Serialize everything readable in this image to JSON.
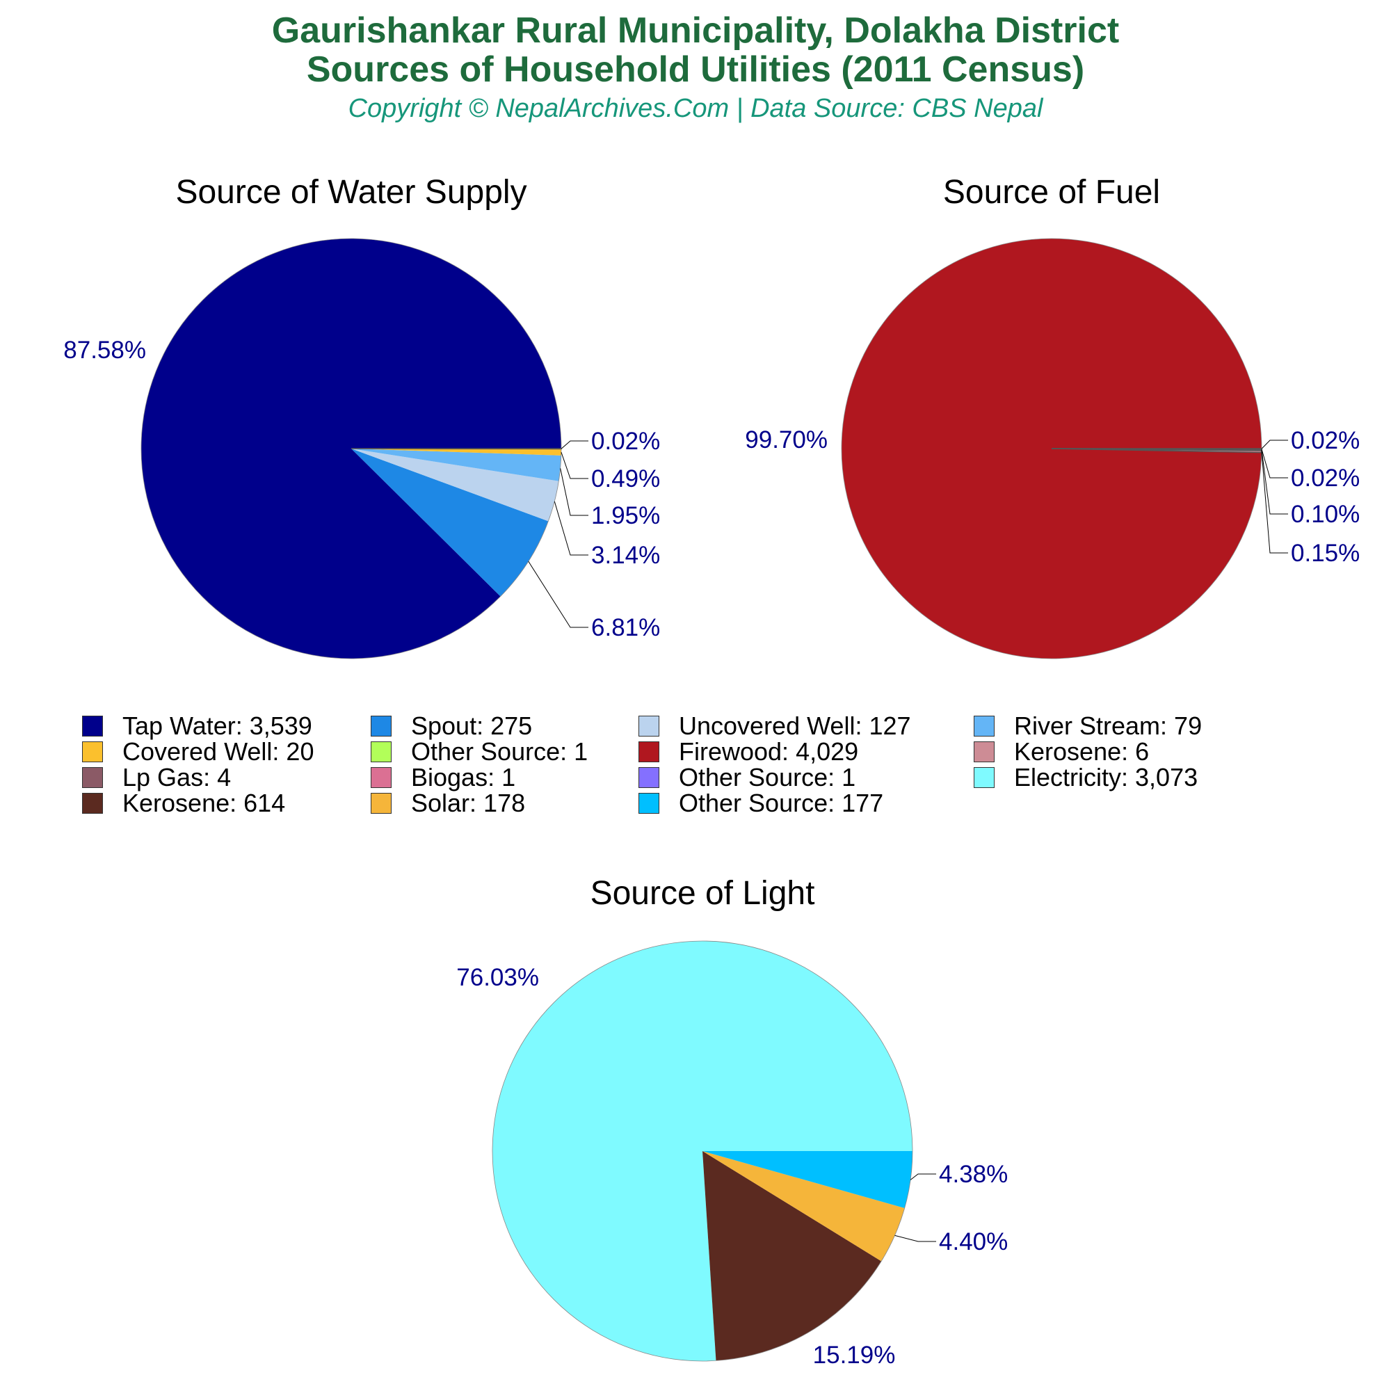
{
  "header": {
    "title_line1": "Gaurishankar Rural Municipality, Dolakha District",
    "title_line2": "Sources of Household Utilities (2011 Census)",
    "subtitle": "Copyright © NepalArchives.Com | Data Source: CBS Nepal",
    "title_color": "#1e6b3c",
    "subtitle_color": "#16967a"
  },
  "chart_data": [
    {
      "type": "pie",
      "title": "Source of Water Supply",
      "slices": [
        {
          "name": "Tap Water",
          "value": 3539,
          "percent_label": "87.58%",
          "color": "#00008b"
        },
        {
          "name": "Spout",
          "value": 275,
          "percent_label": "6.81%",
          "color": "#1e88e5"
        },
        {
          "name": "Uncovered Well",
          "value": 127,
          "percent_label": "3.14%",
          "color": "#bbd3ee"
        },
        {
          "name": "River Stream",
          "value": 79,
          "percent_label": "1.95%",
          "color": "#64b5f6"
        },
        {
          "name": "Covered Well",
          "value": 20,
          "percent_label": "0.49%",
          "color": "#fbc02d"
        },
        {
          "name": "Other Source",
          "value": 1,
          "percent_label": "0.02%",
          "color": "#b2ff59"
        }
      ]
    },
    {
      "type": "pie",
      "title": "Source of Fuel",
      "slices": [
        {
          "name": "Firewood",
          "value": 4029,
          "percent_label": "99.70%",
          "color": "#b0171f"
        },
        {
          "name": "Kerosene",
          "value": 6,
          "percent_label": "0.15%",
          "color": "#cd8c95"
        },
        {
          "name": "Lp Gas",
          "value": 4,
          "percent_label": "0.10%",
          "color": "#8b5a66"
        },
        {
          "name": "Biogas",
          "value": 1,
          "percent_label": "0.02%",
          "color": "#db7093"
        },
        {
          "name": "Other Source",
          "value": 1,
          "percent_label": "0.02%",
          "color": "#8470ff"
        }
      ]
    },
    {
      "type": "pie",
      "title": "Source of Light",
      "slices": [
        {
          "name": "Electricity",
          "value": 3073,
          "percent_label": "76.03%",
          "color": "#7ffaff"
        },
        {
          "name": "Kerosene",
          "value": 614,
          "percent_label": "15.19%",
          "color": "#5b2a20"
        },
        {
          "name": "Solar",
          "value": 178,
          "percent_label": "4.40%",
          "color": "#f5b53a"
        },
        {
          "name": "Other Source",
          "value": 177,
          "percent_label": "4.38%",
          "color": "#00bfff"
        }
      ]
    }
  ],
  "legend": [
    {
      "label": "Tap Water: 3,539",
      "color": "#00008b"
    },
    {
      "label": "Spout: 275",
      "color": "#1e88e5"
    },
    {
      "label": "Uncovered Well: 127",
      "color": "#bbd3ee"
    },
    {
      "label": "River Stream: 79",
      "color": "#64b5f6"
    },
    {
      "label": "Covered Well: 20",
      "color": "#fbc02d"
    },
    {
      "label": "Other Source: 1",
      "color": "#b2ff59"
    },
    {
      "label": "Firewood: 4,029",
      "color": "#b0171f"
    },
    {
      "label": "Kerosene: 6",
      "color": "#cd8c95"
    },
    {
      "label": "Lp Gas: 4",
      "color": "#8b5a66"
    },
    {
      "label": "Biogas: 1",
      "color": "#db7093"
    },
    {
      "label": "Other Source: 1",
      "color": "#8470ff"
    },
    {
      "label": "Electricity: 3,073",
      "color": "#7ffaff"
    },
    {
      "label": "Kerosene: 614",
      "color": "#5b2a20"
    },
    {
      "label": "Solar: 178",
      "color": "#f5b53a"
    },
    {
      "label": "Other Source: 177",
      "color": "#00bfff"
    }
  ]
}
